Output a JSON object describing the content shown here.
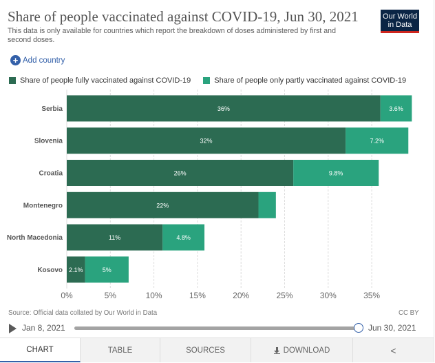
{
  "title": "Share of people vaccinated against COVID-19, Jun 30, 2021",
  "subtitle": "This data is only available for countries which report the breakdown of doses administered by first and second doses.",
  "logo": {
    "line1": "Our World",
    "line2": "in Data"
  },
  "add_country_label": "Add country",
  "legend": [
    {
      "label": "Share of people fully vaccinated against COVID-19",
      "color": "#2c6b52"
    },
    {
      "label": "Share of people only partly vaccinated against COVID-19",
      "color": "#2aa37e"
    }
  ],
  "chart_data": {
    "type": "bar",
    "orientation": "horizontal",
    "stacked": true,
    "categories": [
      "Serbia",
      "Slovenia",
      "Croatia",
      "Montenegro",
      "North Macedonia",
      "Kosovo"
    ],
    "series": [
      {
        "name": "Share of people fully vaccinated against COVID-19",
        "values": [
          36,
          32,
          26,
          22,
          11,
          2.1
        ],
        "labels": [
          "36%",
          "32%",
          "26%",
          "22%",
          "11%",
          "2.1%"
        ],
        "color": "#2c6b52"
      },
      {
        "name": "Share of people only partly vaccinated against COVID-19",
        "values": [
          3.6,
          7.2,
          9.8,
          2.0,
          4.8,
          5
        ],
        "labels": [
          "3.6%",
          "7.2%",
          "9.8%",
          "",
          "4.8%",
          "5%"
        ],
        "color": "#2aa37e"
      }
    ],
    "x_ticks": [
      "0%",
      "5%",
      "10%",
      "15%",
      "20%",
      "25%",
      "30%",
      "35%"
    ],
    "x_tick_values": [
      0,
      5,
      10,
      15,
      20,
      25,
      30,
      35
    ],
    "xlim": [
      0,
      40
    ],
    "grid": true
  },
  "source": "Source: Official data collated by Our World in Data",
  "license": "CC BY",
  "timeline": {
    "start": "Jan 8, 2021",
    "end": "Jun 30, 2021",
    "position": 1.0
  },
  "tabs": [
    {
      "label": "CHART",
      "active": true
    },
    {
      "label": "TABLE",
      "active": false
    },
    {
      "label": "SOURCES",
      "active": false
    },
    {
      "label": "DOWNLOAD",
      "active": false
    }
  ]
}
